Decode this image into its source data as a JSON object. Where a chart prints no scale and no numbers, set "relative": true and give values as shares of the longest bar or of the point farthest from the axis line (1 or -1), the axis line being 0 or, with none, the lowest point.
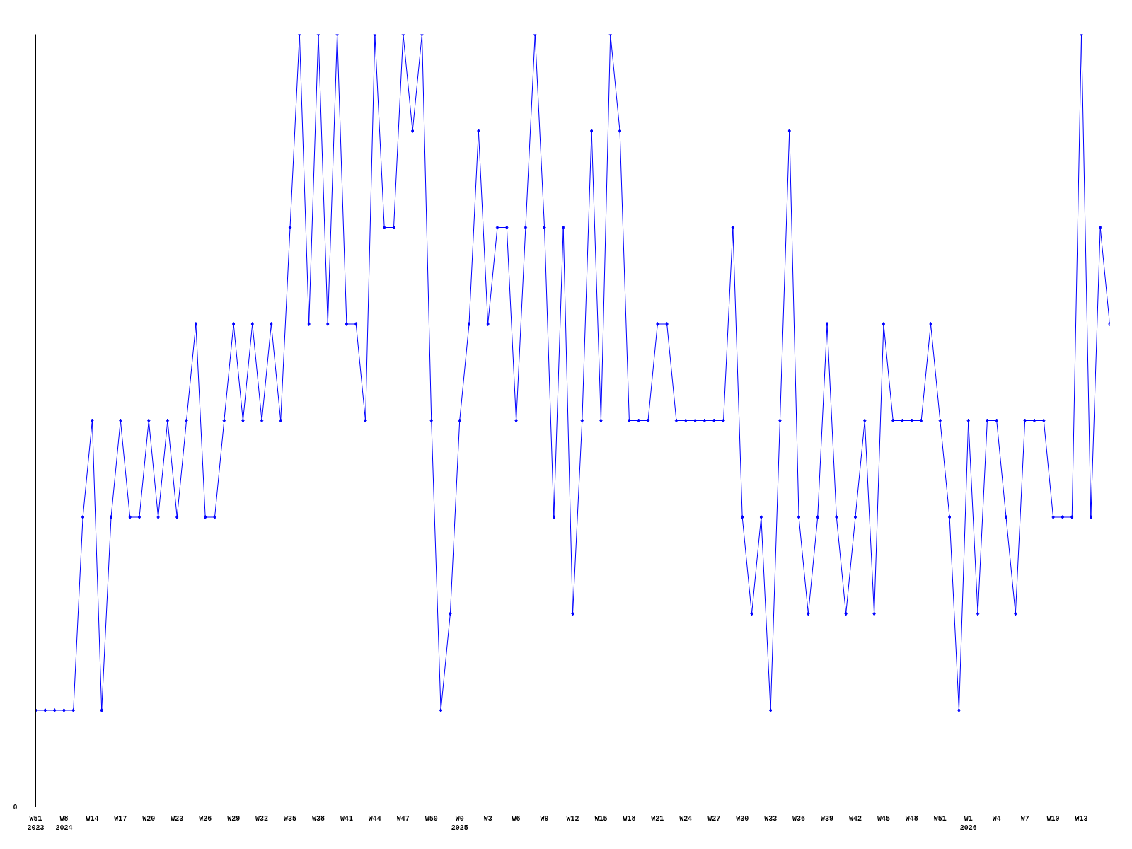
{
  "chart_data": {
    "type": "line",
    "relative": true,
    "marker": "diamond",
    "line_style": "solid",
    "grid": false,
    "annotations": [
      "0"
    ],
    "categories": [
      "W51\n2023",
      null,
      null,
      "W8\n2024",
      null,
      null,
      "W14",
      null,
      null,
      "W17",
      null,
      null,
      "W20",
      null,
      null,
      "W23",
      null,
      null,
      "W26",
      null,
      null,
      "W29",
      null,
      null,
      "W32",
      null,
      null,
      "W35",
      null,
      null,
      "W38",
      null,
      null,
      "W41",
      null,
      null,
      "W44",
      null,
      null,
      "W47",
      null,
      null,
      "W50",
      null,
      null,
      "W0\n2025",
      null,
      null,
      "W3",
      null,
      null,
      "W6",
      null,
      null,
      "W9",
      null,
      null,
      "W12",
      null,
      null,
      "W15",
      null,
      null,
      "W18",
      null,
      null,
      "W21",
      null,
      null,
      "W24",
      null,
      null,
      "W27",
      null,
      null,
      "W30",
      null,
      null,
      "W33",
      null,
      null,
      "W36",
      null,
      null,
      "W39",
      null,
      null,
      "W42",
      null,
      null,
      "W45",
      null,
      null,
      "W48",
      null,
      null,
      "W51",
      null,
      null,
      "W1\n2026",
      null,
      null,
      "W4",
      null,
      null,
      "W7",
      null,
      null,
      "W10",
      null,
      null,
      "W13",
      null,
      null,
      null
    ],
    "series": [
      {
        "color": "#0000ff",
        "values": [
          0.125,
          0.125,
          0.125,
          0.125,
          0.125,
          0.375,
          0.5,
          0.125,
          0.375,
          0.5,
          0.375,
          0.375,
          0.5,
          0.375,
          0.5,
          0.375,
          0.5,
          0.625,
          0.375,
          0.375,
          0.5,
          0.625,
          0.5,
          0.625,
          0.5,
          0.625,
          0.5,
          0.75,
          1,
          0.625,
          1,
          0.625,
          1,
          0.625,
          0.625,
          0.5,
          1,
          0.75,
          0.75,
          1,
          0.875,
          1,
          0.5,
          0.125,
          0.25,
          0.5,
          0.625,
          0.875,
          0.625,
          0.75,
          0.75,
          0.5,
          0.75,
          1,
          0.75,
          0.375,
          0.75,
          0.25,
          0.5,
          0.875,
          0.5,
          1,
          0.875,
          0.5,
          0.5,
          0.5,
          0.625,
          0.625,
          0.5,
          0.5,
          0.5,
          0.5,
          0.5,
          0.5,
          0.75,
          0.375,
          0.25,
          0.375,
          0.125,
          0.5,
          0.875,
          0.375,
          0.25,
          0.375,
          0.625,
          0.375,
          0.25,
          0.375,
          0.5,
          0.25,
          0.625,
          0.5,
          0.5,
          0.5,
          0.5,
          0.625,
          0.5,
          0.375,
          0.125,
          0.5,
          0.25,
          0.5,
          0.5,
          0.375,
          0.25,
          0.5,
          0.5,
          0.5,
          0.375,
          0.375,
          0.375,
          1,
          0.375,
          0.75,
          0.625
        ]
      }
    ]
  }
}
